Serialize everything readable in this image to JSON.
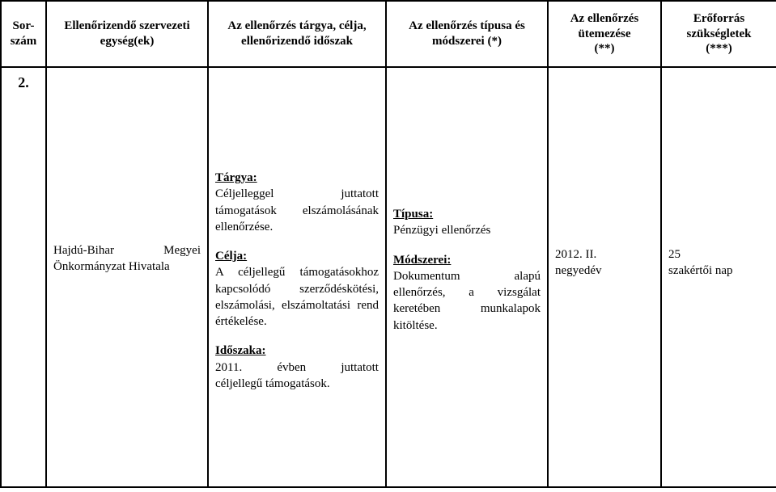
{
  "header": {
    "sorszam": "Sor-\nszám",
    "szervezet": "Ellenőrizendő szervezeti egység(ek)",
    "targy": "Az ellenőrzés tárgya, célja, ellenőrizendő időszak",
    "tipus": "Az ellenőrzés típusa és módszerei (*)",
    "utem": "Az ellenőrzés ütemezése\n(**)",
    "eroforr": "Erőforrás szükségletek\n(***)"
  },
  "row": {
    "sorszam": "2.",
    "szervezet_left": "Hajdú-Bihar",
    "szervezet_right": "Megyei",
    "szervezet_line2": "Önkormányzat Hivatala",
    "targy": {
      "targy_label": "Tárgya:",
      "targy_l1_left": "Céljelleggel",
      "targy_l1_right": "juttatott",
      "targy_l2": "támogatások elszámolásának ellenőrzése.",
      "celja_label": "Célja:",
      "celja_text": "A céljellegű támogatásokhoz kapcsolódó szerződéskötési, elszámolási, elszámoltatási rend értékelése.",
      "idoszak_label": "Időszaka:",
      "idoszak_l1_left": "2011.",
      "idoszak_l1_mid": "évben",
      "idoszak_l1_right": "juttatott",
      "idoszak_l2": "céljellegű támogatások."
    },
    "tipus": {
      "tipus_label": "Típusa:",
      "tipus_text": "Pénzügyi ellenőrzés",
      "mod_label": "Módszerei:",
      "mod_l1_left": "Dokumentum",
      "mod_l1_right": "alapú",
      "mod_l2": "ellenőrzés, a vizsgálat keretében munkalapok kitöltése."
    },
    "utem_l1": "2012. II.",
    "utem_l2": "negyedév",
    "eroforr_l1": "25",
    "eroforr_l2": "szakértői nap"
  }
}
